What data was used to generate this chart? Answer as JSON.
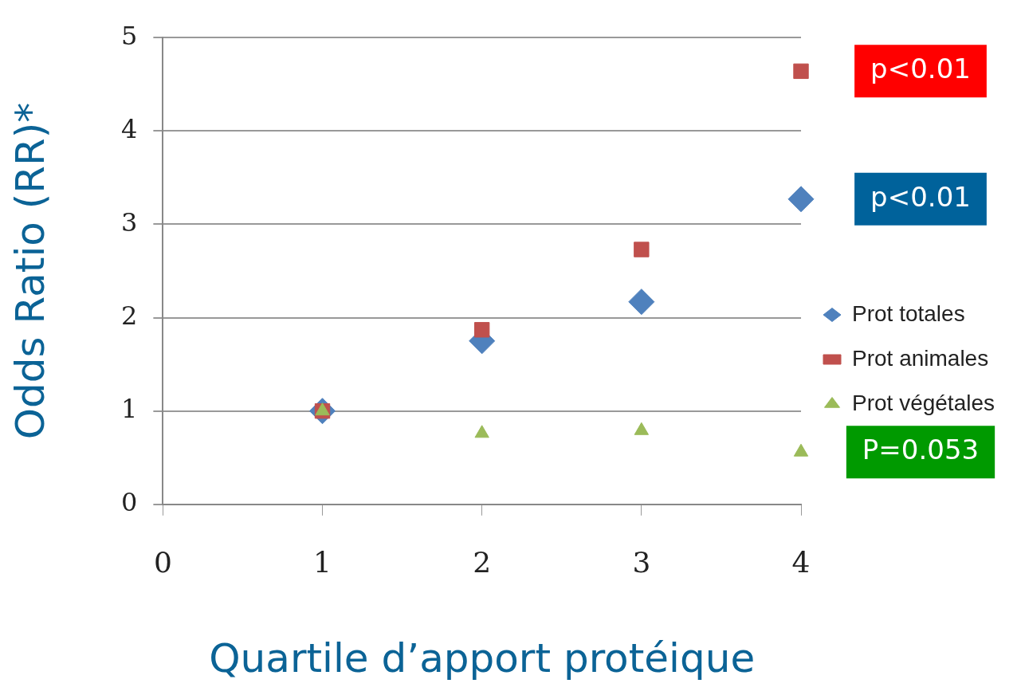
{
  "chart_data": {
    "type": "scatter",
    "xlabel": "Quartile d’apport protéique",
    "ylabel": "Odds Ratio (RR)*",
    "x": [
      1,
      2,
      3,
      4
    ],
    "series": [
      {
        "name": "Prot totales",
        "color": "#4f81bd",
        "marker": "diamond",
        "values": [
          1.0,
          1.75,
          2.17,
          3.27
        ]
      },
      {
        "name": "Prot animales",
        "color": "#c0504d",
        "marker": "square",
        "values": [
          1.0,
          1.87,
          2.73,
          4.64
        ]
      },
      {
        "name": "Prot végétales",
        "color": "#9bbb59",
        "marker": "triangle",
        "values": [
          1.0,
          0.76,
          0.79,
          0.56
        ]
      }
    ],
    "xlim": [
      0,
      4
    ],
    "xticks": [
      0,
      1,
      2,
      3,
      4
    ],
    "ylim": [
      0,
      5
    ],
    "yticks": [
      0,
      1,
      2,
      3,
      4,
      5
    ],
    "grid": "y",
    "legend": "right",
    "annotations": [
      "p<0.01",
      "p<0.01",
      "P=0.053"
    ]
  }
}
